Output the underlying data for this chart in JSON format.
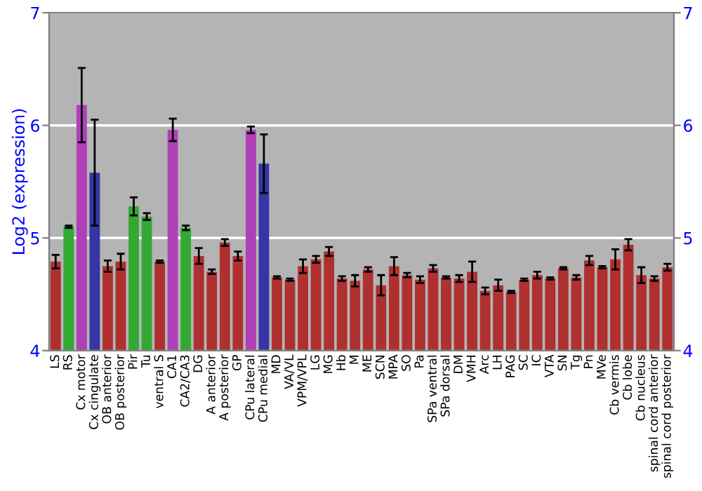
{
  "chart_data": {
    "type": "bar",
    "ylabel": "Log2 (expression)",
    "categories": [
      "LS",
      "RS",
      "Cx motor",
      "Cx cingulate",
      "OB anterior",
      "OB posterior",
      "Pir",
      "Tu",
      "ventral S",
      "CA1",
      "CA2/CA3",
      "DG",
      "A anterior",
      "A posterior",
      "GP",
      "CPu lateral",
      "CPu medial",
      "MD",
      "VA/VL",
      "VPM/VPL",
      "LG",
      "MG",
      "Hb",
      "M",
      "ME",
      "SCN",
      "MPA",
      "SO",
      "Pa",
      "SPa ventral",
      "SPa dorsal",
      "DM",
      "VMH",
      "Arc",
      "LH",
      "PAG",
      "SC",
      "IC",
      "VTA",
      "SN",
      "Tg",
      "Pn",
      "MVe",
      "Cb vermis",
      "Cb lobe",
      "Cb nucleus",
      "spinal cord anterior",
      "spinal cord posterior"
    ],
    "values": [
      4.79,
      5.1,
      6.18,
      5.58,
      4.75,
      4.79,
      5.28,
      5.19,
      4.79,
      5.96,
      5.09,
      4.84,
      4.7,
      4.96,
      4.84,
      5.96,
      5.66,
      4.65,
      4.63,
      4.75,
      4.81,
      4.88,
      4.64,
      4.62,
      4.72,
      4.58,
      4.75,
      4.67,
      4.63,
      4.73,
      4.65,
      4.64,
      4.7,
      4.53,
      4.58,
      4.52,
      4.63,
      4.67,
      4.64,
      4.73,
      4.65,
      4.8,
      4.74,
      4.81,
      4.94,
      4.67,
      4.64,
      4.74
    ],
    "errors": [
      0.06,
      0.01,
      0.33,
      0.47,
      0.05,
      0.07,
      0.08,
      0.03,
      0.01,
      0.1,
      0.02,
      0.07,
      0.02,
      0.03,
      0.04,
      0.03,
      0.26,
      0.01,
      0.01,
      0.06,
      0.03,
      0.04,
      0.02,
      0.05,
      0.02,
      0.09,
      0.08,
      0.02,
      0.03,
      0.03,
      0.01,
      0.03,
      0.09,
      0.03,
      0.05,
      0.01,
      0.01,
      0.03,
      0.01,
      0.01,
      0.02,
      0.04,
      0.01,
      0.09,
      0.05,
      0.07,
      0.02,
      0.03
    ],
    "colors": [
      "#b03030",
      "#33a833",
      "#b040b8",
      "#3535a5",
      "#b03030",
      "#b03030",
      "#33a833",
      "#33a833",
      "#b03030",
      "#b040b8",
      "#33a833",
      "#b03030",
      "#b03030",
      "#b03030",
      "#b03030",
      "#b040b8",
      "#3535a5",
      "#b03030",
      "#b03030",
      "#b03030",
      "#b03030",
      "#b03030",
      "#b03030",
      "#b03030",
      "#b03030",
      "#b03030",
      "#b03030",
      "#b03030",
      "#b03030",
      "#b03030",
      "#b03030",
      "#b03030",
      "#b03030",
      "#b03030",
      "#b03030",
      "#b03030",
      "#b03030",
      "#b03030",
      "#b03030",
      "#b03030",
      "#b03030",
      "#b03030",
      "#b03030",
      "#b03030",
      "#b03030",
      "#b03030",
      "#b03030",
      "#b03030"
    ],
    "ylim": [
      4,
      7
    ],
    "yticks": [
      4,
      5,
      6,
      7
    ],
    "y2lim": [
      4,
      7
    ],
    "y2ticks": [
      4,
      5,
      6,
      7
    ],
    "grid": "y"
  }
}
